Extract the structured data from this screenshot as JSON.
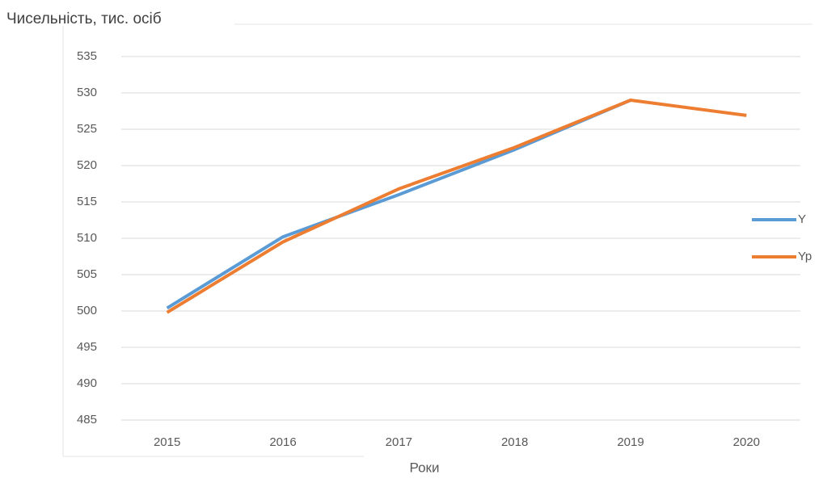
{
  "chart_data": {
    "type": "line",
    "title": "Чисельність, тис. осіб",
    "x_label": "Роки",
    "categories": [
      "2015",
      "2016",
      "2017",
      "2018",
      "2019",
      "2020"
    ],
    "series": [
      {
        "name": "Y",
        "color": "#5b9bd5",
        "values": [
          500.4,
          510.2,
          516,
          522.2,
          529,
          null
        ]
      },
      {
        "name": "Yp",
        "color": "#ed7d31",
        "values": [
          499.8,
          509.5,
          516.8,
          522.5,
          529,
          526.9
        ]
      }
    ],
    "ylim": [
      485,
      535
    ],
    "yticks": [
      485,
      490,
      495,
      500,
      505,
      510,
      515,
      520,
      525,
      530,
      535
    ],
    "grid": true,
    "legend": "right"
  }
}
